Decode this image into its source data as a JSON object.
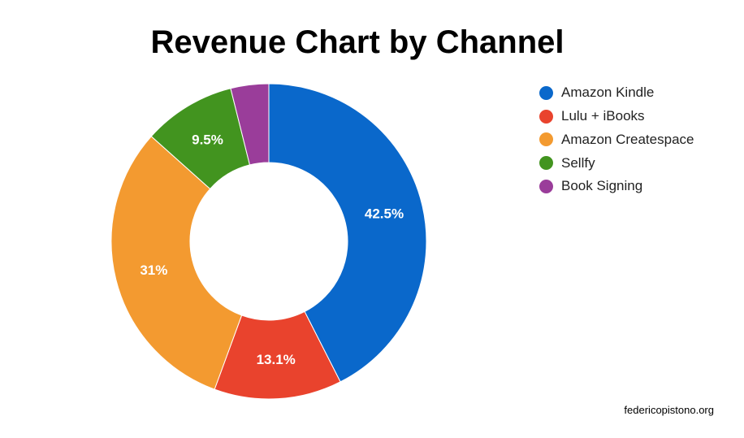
{
  "chart_data": {
    "type": "pie",
    "title": "Revenue Chart by Channel",
    "categories": [
      "Amazon Kindle",
      "Lulu + iBooks",
      "Amazon Createspace",
      "Sellfy",
      "Book Signing"
    ],
    "values": [
      42.5,
      13.1,
      31,
      9.5,
      3.9
    ],
    "data_labels": [
      "42.5%",
      "13.1%",
      "31%",
      "9.5%",
      ""
    ],
    "colors": [
      "#0a68cb",
      "#e9432d",
      "#f39a30",
      "#42941f",
      "#9a3d9a"
    ],
    "donut": true,
    "legend_position": "right"
  },
  "footer": {
    "source": "federicopistono.org"
  }
}
